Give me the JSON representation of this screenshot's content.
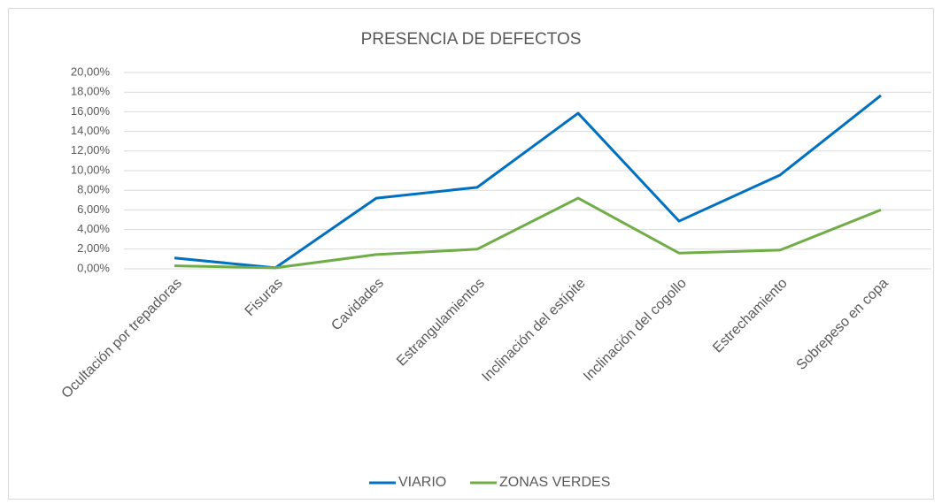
{
  "chart_data": {
    "type": "line",
    "title": "PRESENCIA DE DEFECTOS",
    "categories": [
      "Ocultación por trepadoras",
      "Fisuras",
      "Cavidades",
      "Estrangulamientos",
      "Inclinación del estípite",
      "Inclinación del cogollo",
      "Estrechamiento",
      "Sobrepeso en copa"
    ],
    "series": [
      {
        "name": "VIARIO",
        "color": "#0070c0",
        "values": [
          1.1,
          0.1,
          7.2,
          8.3,
          15.85,
          4.86,
          9.55,
          17.66
        ]
      },
      {
        "name": "ZONAS VERDES",
        "color": "#70ad47",
        "values": [
          0.3,
          0.1,
          1.45,
          2.0,
          7.2,
          1.6,
          1.9,
          6.0
        ]
      }
    ],
    "ylim": [
      0,
      20
    ],
    "yticks": [
      {
        "value": 0,
        "label": "0,00%"
      },
      {
        "value": 2,
        "label": "2,00%"
      },
      {
        "value": 4,
        "label": "4,00%"
      },
      {
        "value": 6,
        "label": "6,00%"
      },
      {
        "value": 8,
        "label": "8,00%"
      },
      {
        "value": 10,
        "label": "10,00%"
      },
      {
        "value": 12,
        "label": "12,00%"
      },
      {
        "value": 14,
        "label": "14,00%"
      },
      {
        "value": 16,
        "label": "16,00%"
      },
      {
        "value": 18,
        "label": "18,00%"
      },
      {
        "value": 20,
        "label": "20,00%"
      }
    ],
    "grid": true,
    "legend": "bottom"
  }
}
